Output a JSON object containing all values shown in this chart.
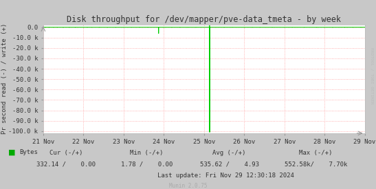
{
  "title": "Disk throughput for /dev/mapper/pve-data_tmeta - by week",
  "ylabel": "Pr second read (-) / write (+)",
  "xlabel_ticks": [
    "21 Nov",
    "22 Nov",
    "23 Nov",
    "24 Nov",
    "25 Nov",
    "26 Nov",
    "27 Nov",
    "28 Nov",
    "29 Nov"
  ],
  "ylim": [
    -102000,
    2500
  ],
  "yticks": [
    0,
    -10000,
    -20000,
    -30000,
    -40000,
    -50000,
    -60000,
    -70000,
    -80000,
    -90000,
    -100000
  ],
  "ytick_labels": [
    "0.0",
    "-10.0 k",
    "-20.0 k",
    "-30.0 k",
    "-40.0 k",
    "-50.0 k",
    "-60.0 k",
    "-70.0 k",
    "-80.0 k",
    "-90.0 k",
    "-100.0 k"
  ],
  "background_color": "#c8c8c8",
  "plot_bg_color": "#ffffff",
  "grid_color": "#ff9999",
  "line_color": "#00cc00",
  "title_color": "#333333",
  "axis_label_color": "#333333",
  "tick_label_color": "#333333",
  "watermark": "RRDTOOL / TOBI OETIKER",
  "munin_label": "Munin 2.0.75",
  "legend_label": "Bytes",
  "legend_color": "#00aa00",
  "last_update": "Last update: Fri Nov 29 12:30:18 2024",
  "xlim_days": [
    0,
    8
  ],
  "spike1_x": 2.87,
  "spike1_y": -6000,
  "spike2_x": 4.14,
  "spike2_y": -101000,
  "spike2_top": 1800,
  "small_blips_x": [
    0.05,
    0.15,
    0.25,
    0.35,
    0.5,
    0.65,
    0.8,
    1.0,
    1.1,
    1.2,
    1.4,
    1.6,
    1.8,
    2.0,
    2.2,
    2.4,
    2.6,
    3.0,
    3.2,
    3.4,
    3.6,
    3.8,
    4.5,
    4.7,
    5.0,
    5.2,
    5.4,
    5.7,
    6.0,
    6.2,
    6.5,
    6.8,
    7.0,
    7.2,
    7.5,
    7.7,
    7.9
  ],
  "small_blips_y": [
    -300,
    -200,
    -250,
    -180,
    -200,
    -150,
    -220,
    -180,
    -200,
    -150,
    -200,
    -180,
    -200,
    -150,
    -180,
    -200,
    -150,
    -200,
    -150,
    -180,
    -160,
    -150,
    -200,
    -150,
    -180,
    -200,
    -150,
    -180,
    -200,
    -150,
    -180,
    -200,
    -150,
    -180,
    -200,
    -150,
    -180
  ]
}
